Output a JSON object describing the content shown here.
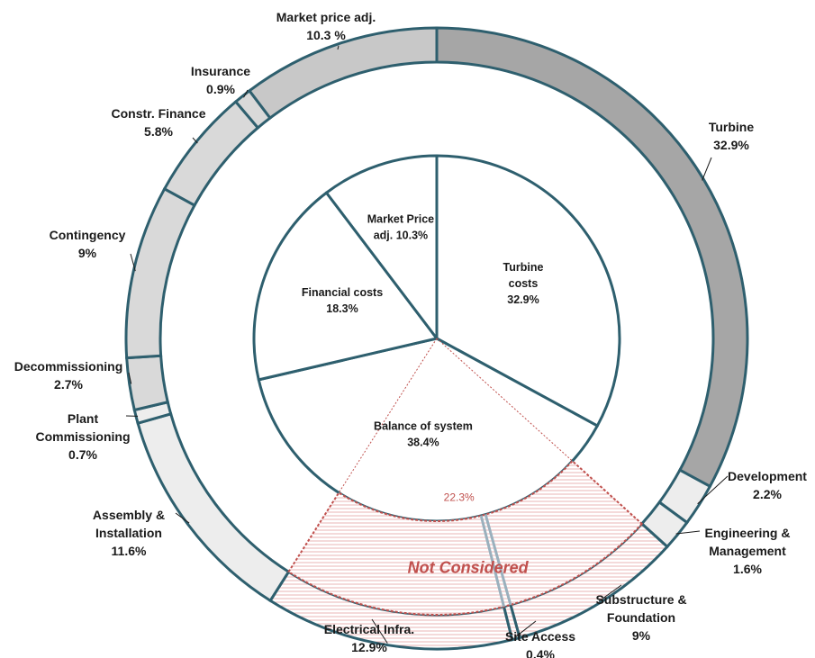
{
  "chart_data": {
    "type": "pie",
    "subtype": "nested donut (sunburst)",
    "title": "",
    "outer_ring": [
      {
        "name": "Turbine",
        "pct_text": "32.9%",
        "value": 32.9,
        "color": "#a6a6a6"
      },
      {
        "name": "Development",
        "pct_text": "2.2%",
        "value": 2.2,
        "color": "#ededed"
      },
      {
        "name": "Engineering & Management",
        "pct_text": "1.6%",
        "value": 1.6,
        "color": "#ededed"
      },
      {
        "name": "Substructure & Foundation",
        "pct_text": "9%",
        "value": 9.0,
        "not_considered": true
      },
      {
        "name": "Site Access",
        "pct_text": "0.4%",
        "value": 0.4,
        "not_considered": true
      },
      {
        "name": "Electrical Infra.",
        "pct_text": "12.9%",
        "value": 12.9,
        "not_considered": true
      },
      {
        "name": "Assembly & Installation",
        "pct_text": "11.6%",
        "value": 11.6,
        "color": "#ededed"
      },
      {
        "name": "Plant Commissioning",
        "pct_text": "0.7%",
        "value": 0.7,
        "color": "#ededed"
      },
      {
        "name": "Decommissioning",
        "pct_text": "2.7%",
        "value": 2.7,
        "color": "#d9d9d9"
      },
      {
        "name": "Contingency",
        "pct_text": "9%",
        "value": 9.0,
        "color": "#d9d9d9"
      },
      {
        "name": "Constr. Finance",
        "pct_text": "5.8%",
        "value": 5.8,
        "color": "#d9d9d9"
      },
      {
        "name": "Insurance",
        "pct_text": "0.9%",
        "value": 0.9,
        "color": "#d9d9d9"
      },
      {
        "name": "Market price adj.",
        "pct_text": "10.3 %",
        "value": 10.3,
        "color": "#c8c8c8"
      }
    ],
    "inner_ring": [
      {
        "name": "Turbine costs",
        "pct_text": "32.9%",
        "value": 32.9
      },
      {
        "name": "Balance of system",
        "pct_text": "38.4%",
        "value": 38.4
      },
      {
        "name": "Financial costs",
        "pct_text": "18.3%",
        "value": 18.3
      },
      {
        "name": "Market Price adj.",
        "pct_text": "10.3%",
        "value": 10.3
      }
    ],
    "annotations": {
      "not_considered": "Not Considered",
      "not_considered_total": "22.3%"
    },
    "colors": {
      "stroke": "#2e5f6e",
      "not_considered_line": "#c0504d",
      "hatch": "#e8b4b4"
    }
  }
}
